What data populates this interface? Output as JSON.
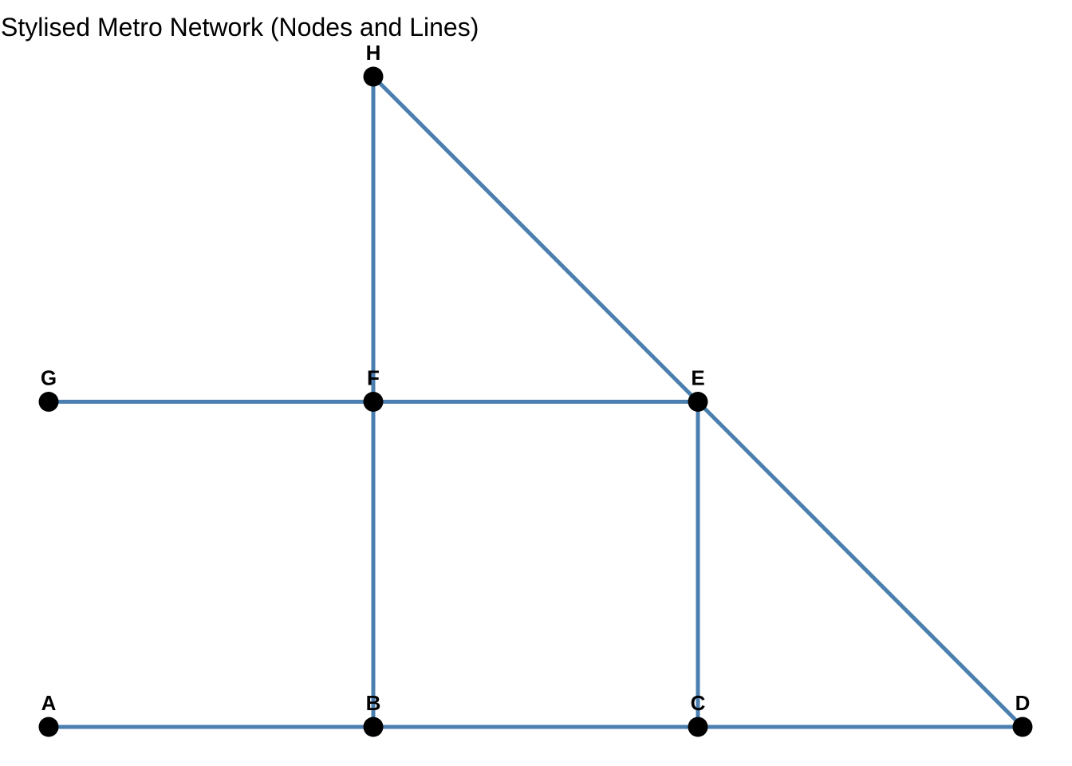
{
  "title": "Stylised Metro Network (Nodes and Lines)",
  "colors": {
    "line": "#4a7fb0",
    "node": "#000000",
    "background": "#ffffff"
  },
  "nodes": [
    {
      "id": "A",
      "label": "A",
      "x": 0,
      "y": 0
    },
    {
      "id": "B",
      "label": "B",
      "x": 1,
      "y": 0
    },
    {
      "id": "C",
      "label": "C",
      "x": 2,
      "y": 0
    },
    {
      "id": "D",
      "label": "D",
      "x": 3,
      "y": 0
    },
    {
      "id": "E",
      "label": "E",
      "x": 2,
      "y": 1
    },
    {
      "id": "F",
      "label": "F",
      "x": 1,
      "y": 1
    },
    {
      "id": "G",
      "label": "G",
      "x": 0,
      "y": 1
    },
    {
      "id": "H",
      "label": "H",
      "x": 1,
      "y": 2
    }
  ],
  "edges": [
    [
      "A",
      "B"
    ],
    [
      "B",
      "C"
    ],
    [
      "C",
      "D"
    ],
    [
      "G",
      "F"
    ],
    [
      "F",
      "E"
    ],
    [
      "B",
      "F"
    ],
    [
      "F",
      "H"
    ],
    [
      "C",
      "E"
    ],
    [
      "H",
      "E"
    ],
    [
      "E",
      "D"
    ]
  ]
}
